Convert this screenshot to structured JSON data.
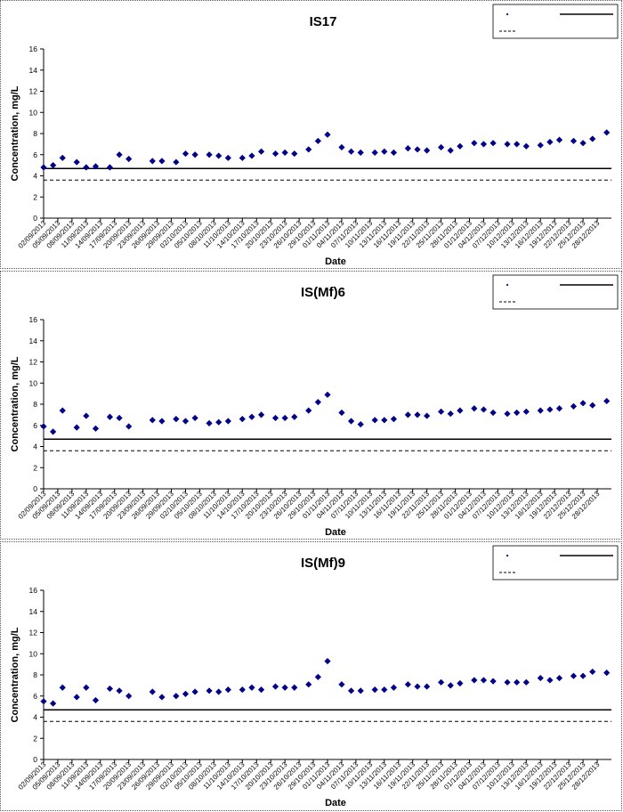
{
  "chart_data": [
    {
      "type": "scatter",
      "title": "IS17",
      "xlabel": "Date",
      "ylabel": "Concentration, mg/L",
      "ylim": [
        0,
        16
      ],
      "yticks": [
        0,
        2,
        4,
        6,
        8,
        10,
        12,
        14,
        16
      ],
      "xlim": [
        "02/09/2013",
        "31/12/2013"
      ],
      "x_tick_labels": [
        "02/09/2013",
        "05/09/2013",
        "08/09/2013",
        "11/09/2013",
        "14/09/2013",
        "17/09/2013",
        "20/09/2013",
        "23/09/2013",
        "26/09/2013",
        "29/09/2013",
        "02/10/2013",
        "05/10/2013",
        "08/10/2013",
        "11/10/2013",
        "14/10/2013",
        "17/10/2013",
        "20/10/2013",
        "23/10/2013",
        "26/10/2013",
        "29/10/2013",
        "01/11/2013",
        "04/11/2013",
        "07/11/2013",
        "10/11/2013",
        "13/11/2013",
        "16/11/2013",
        "19/11/2013",
        "22/11/2013",
        "25/11/2013",
        "28/11/2013",
        "01/12/2013",
        "04/12/2013",
        "07/12/2013",
        "10/12/2013",
        "13/12/2013",
        "16/12/2013",
        "19/12/2013",
        "22/12/2013",
        "25/12/2013",
        "28/12/2013"
      ],
      "grid": false,
      "legend_position": "top-right",
      "series": [
        {
          "marker": "diamond",
          "color": "#00008B",
          "x": [
            "02/09/2013",
            "04/09/2013",
            "06/09/2013",
            "09/09/2013",
            "11/09/2013",
            "13/09/2013",
            "16/09/2013",
            "18/09/2013",
            "20/09/2013",
            "25/09/2013",
            "27/09/2013",
            "30/09/2013",
            "02/10/2013",
            "04/10/2013",
            "07/10/2013",
            "09/10/2013",
            "11/10/2013",
            "14/10/2013",
            "16/10/2013",
            "18/10/2013",
            "21/10/2013",
            "23/10/2013",
            "25/10/2013",
            "28/10/2013",
            "30/10/2013",
            "01/11/2013",
            "04/11/2013",
            "06/11/2013",
            "08/11/2013",
            "11/11/2013",
            "13/11/2013",
            "15/11/2013",
            "18/11/2013",
            "20/11/2013",
            "22/11/2013",
            "25/11/2013",
            "27/11/2013",
            "29/11/2013",
            "02/12/2013",
            "04/12/2013",
            "06/12/2013",
            "09/12/2013",
            "11/12/2013",
            "13/12/2013",
            "16/12/2013",
            "18/12/2013",
            "20/12/2013",
            "23/12/2013",
            "25/12/2013",
            "27/12/2013",
            "30/12/2013"
          ],
          "y": [
            4.8,
            5.0,
            5.7,
            5.3,
            4.8,
            4.9,
            4.8,
            6.0,
            5.6,
            5.4,
            5.4,
            5.3,
            6.1,
            6.0,
            6.0,
            5.9,
            5.7,
            5.7,
            5.9,
            6.3,
            6.1,
            6.2,
            6.1,
            6.5,
            7.3,
            7.9,
            6.7,
            6.3,
            6.2,
            6.2,
            6.3,
            6.2,
            6.6,
            6.5,
            6.4,
            6.7,
            6.4,
            6.8,
            7.1,
            7.0,
            7.1,
            7.0,
            7.0,
            6.8,
            6.9,
            7.2,
            7.4,
            7.3,
            7.1,
            7.5,
            8.1
          ]
        },
        {
          "style": "solid-line",
          "color": "#000000",
          "constant_y": 4.7
        },
        {
          "style": "dashed-line",
          "color": "#000000",
          "constant_y": 3.6
        }
      ]
    },
    {
      "type": "scatter",
      "title": "IS(Mf)6",
      "xlabel": "Date",
      "ylabel": "Concentration, mg/L",
      "ylim": [
        0,
        16
      ],
      "yticks": [
        0,
        2,
        4,
        6,
        8,
        10,
        12,
        14,
        16
      ],
      "xlim": [
        "02/09/2013",
        "31/12/2013"
      ],
      "x_tick_labels": [
        "02/09/2013",
        "05/09/2013",
        "08/09/2013",
        "11/09/2013",
        "14/09/2013",
        "17/09/2013",
        "20/09/2013",
        "23/09/2013",
        "26/09/2013",
        "29/09/2013",
        "02/10/2013",
        "05/10/2013",
        "08/10/2013",
        "11/10/2013",
        "14/10/2013",
        "17/10/2013",
        "20/10/2013",
        "23/10/2013",
        "26/10/2013",
        "29/10/2013",
        "01/11/2013",
        "04/11/2013",
        "07/11/2013",
        "10/11/2013",
        "13/11/2013",
        "16/11/2013",
        "19/11/2013",
        "22/11/2013",
        "25/11/2013",
        "28/11/2013",
        "01/12/2013",
        "04/12/2013",
        "07/12/2013",
        "10/12/2013",
        "13/12/2013",
        "16/12/2013",
        "19/12/2013",
        "22/12/2013",
        "25/12/2013",
        "28/12/2013"
      ],
      "grid": false,
      "legend_position": "top-right",
      "series": [
        {
          "marker": "diamond",
          "color": "#00008B",
          "x": [
            "02/09/2013",
            "04/09/2013",
            "06/09/2013",
            "09/09/2013",
            "11/09/2013",
            "13/09/2013",
            "16/09/2013",
            "18/09/2013",
            "20/09/2013",
            "25/09/2013",
            "27/09/2013",
            "30/09/2013",
            "02/10/2013",
            "04/10/2013",
            "07/10/2013",
            "09/10/2013",
            "11/10/2013",
            "14/10/2013",
            "16/10/2013",
            "18/10/2013",
            "21/10/2013",
            "23/10/2013",
            "25/10/2013",
            "28/10/2013",
            "30/10/2013",
            "01/11/2013",
            "04/11/2013",
            "06/11/2013",
            "08/11/2013",
            "11/11/2013",
            "13/11/2013",
            "15/11/2013",
            "18/11/2013",
            "20/11/2013",
            "22/11/2013",
            "25/11/2013",
            "27/11/2013",
            "29/11/2013",
            "02/12/2013",
            "04/12/2013",
            "06/12/2013",
            "09/12/2013",
            "11/12/2013",
            "13/12/2013",
            "16/12/2013",
            "18/12/2013",
            "20/12/2013",
            "23/12/2013",
            "25/12/2013",
            "27/12/2013",
            "30/12/2013"
          ],
          "y": [
            5.9,
            5.4,
            7.4,
            5.8,
            6.9,
            5.7,
            6.8,
            6.7,
            5.9,
            6.5,
            6.4,
            6.6,
            6.4,
            6.7,
            6.2,
            6.3,
            6.4,
            6.6,
            6.8,
            7.0,
            6.7,
            6.7,
            6.8,
            7.4,
            8.2,
            8.9,
            7.2,
            6.4,
            6.1,
            6.5,
            6.5,
            6.6,
            7.0,
            7.0,
            6.9,
            7.3,
            7.1,
            7.4,
            7.6,
            7.5,
            7.2,
            7.1,
            7.2,
            7.3,
            7.4,
            7.5,
            7.6,
            7.8,
            8.1,
            7.9,
            8.3
          ]
        },
        {
          "style": "solid-line",
          "color": "#000000",
          "constant_y": 4.7
        },
        {
          "style": "dashed-line",
          "color": "#000000",
          "constant_y": 3.6
        }
      ]
    },
    {
      "type": "scatter",
      "title": "IS(Mf)9",
      "xlabel": "Date",
      "ylabel": "Concentration, mg/L",
      "ylim": [
        0,
        16
      ],
      "yticks": [
        0,
        2,
        4,
        6,
        8,
        10,
        12,
        14,
        16
      ],
      "xlim": [
        "02/09/2013",
        "31/12/2013"
      ],
      "x_tick_labels": [
        "02/09/2013",
        "05/09/2013",
        "08/09/2013",
        "11/09/2013",
        "14/09/2013",
        "17/09/2013",
        "20/09/2013",
        "23/09/2013",
        "26/09/2013",
        "29/09/2013",
        "02/10/2013",
        "05/10/2013",
        "08/10/2013",
        "11/10/2013",
        "14/10/2013",
        "17/10/2013",
        "20/10/2013",
        "23/10/2013",
        "26/10/2013",
        "29/10/2013",
        "01/11/2013",
        "04/11/2013",
        "07/11/2013",
        "10/11/2013",
        "13/11/2013",
        "16/11/2013",
        "19/11/2013",
        "22/11/2013",
        "25/11/2013",
        "28/11/2013",
        "01/12/2013",
        "04/12/2013",
        "07/12/2013",
        "10/12/2013",
        "13/12/2013",
        "16/12/2013",
        "19/12/2013",
        "22/12/2013",
        "25/12/2013",
        "28/12/2013"
      ],
      "grid": false,
      "legend_position": "top-right",
      "series": [
        {
          "marker": "diamond",
          "color": "#00008B",
          "x": [
            "02/09/2013",
            "04/09/2013",
            "06/09/2013",
            "09/09/2013",
            "11/09/2013",
            "13/09/2013",
            "16/09/2013",
            "18/09/2013",
            "20/09/2013",
            "25/09/2013",
            "27/09/2013",
            "30/09/2013",
            "02/10/2013",
            "04/10/2013",
            "07/10/2013",
            "09/10/2013",
            "11/10/2013",
            "14/10/2013",
            "16/10/2013",
            "18/10/2013",
            "21/10/2013",
            "23/10/2013",
            "25/10/2013",
            "28/10/2013",
            "30/10/2013",
            "01/11/2013",
            "04/11/2013",
            "06/11/2013",
            "08/11/2013",
            "11/11/2013",
            "13/11/2013",
            "15/11/2013",
            "18/11/2013",
            "20/11/2013",
            "22/11/2013",
            "25/11/2013",
            "27/11/2013",
            "29/11/2013",
            "02/12/2013",
            "04/12/2013",
            "06/12/2013",
            "09/12/2013",
            "11/12/2013",
            "13/12/2013",
            "16/12/2013",
            "18/12/2013",
            "20/12/2013",
            "23/12/2013",
            "25/12/2013",
            "27/12/2013",
            "30/12/2013"
          ],
          "y": [
            5.5,
            5.3,
            6.8,
            5.9,
            6.8,
            5.6,
            6.7,
            6.5,
            6.0,
            6.4,
            5.9,
            6.0,
            6.2,
            6.4,
            6.5,
            6.4,
            6.6,
            6.6,
            6.8,
            6.6,
            6.9,
            6.8,
            6.8,
            7.1,
            7.8,
            9.3,
            7.1,
            6.5,
            6.5,
            6.6,
            6.6,
            6.8,
            7.1,
            6.9,
            6.9,
            7.3,
            7.0,
            7.2,
            7.5,
            7.5,
            7.4,
            7.3,
            7.3,
            7.3,
            7.7,
            7.5,
            7.7,
            7.9,
            7.9,
            8.3,
            8.2
          ]
        },
        {
          "style": "solid-line",
          "color": "#000000",
          "constant_y": 4.7
        },
        {
          "style": "dashed-line",
          "color": "#000000",
          "constant_y": 3.6
        }
      ]
    }
  ]
}
